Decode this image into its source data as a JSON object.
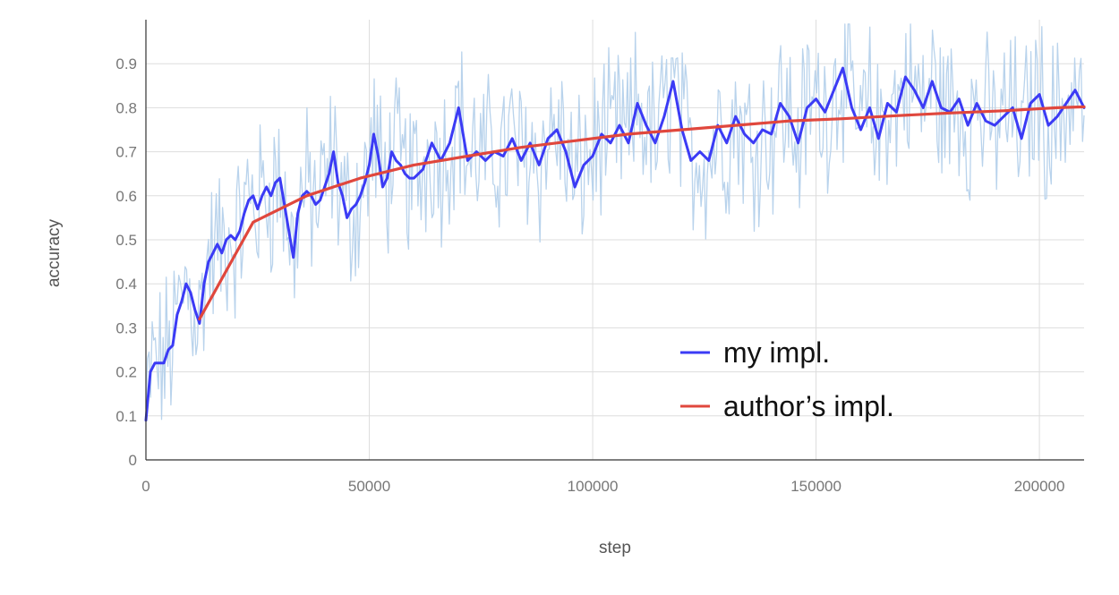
{
  "chart_data": {
    "type": "line",
    "xlabel": "step",
    "ylabel": "accuracy",
    "xlim": [
      0,
      210000
    ],
    "ylim": [
      0,
      1
    ],
    "x_ticks": [
      0,
      50000,
      100000,
      150000,
      200000
    ],
    "x_tick_labels": [
      "0",
      "50000",
      "100000",
      "150000",
      "200000"
    ],
    "y_ticks": [
      0,
      0.1,
      0.2,
      0.3,
      0.4,
      0.5,
      0.6,
      0.7,
      0.8,
      0.9
    ],
    "y_tick_labels": [
      "0",
      "0.1",
      "0.2",
      "0.3",
      "0.4",
      "0.5",
      "0.6",
      "0.7",
      "0.8",
      "0.9"
    ],
    "grid": true,
    "legend_position": "bottom-right",
    "series": [
      {
        "name": "my impl.",
        "color": "#3b3bf5",
        "raw_color": "#b9d3ec",
        "x": [
          0,
          1000,
          2000,
          3000,
          4000,
          5000,
          6000,
          7000,
          8000,
          9000,
          10000,
          11000,
          12000,
          13000,
          14000,
          15000,
          16000,
          17000,
          18000,
          19000,
          20000,
          21000,
          22000,
          23000,
          24000,
          25000,
          26000,
          27000,
          28000,
          29000,
          30000,
          31000,
          32000,
          33000,
          34000,
          35000,
          36000,
          37000,
          38000,
          39000,
          40000,
          41000,
          42000,
          43000,
          44000,
          45000,
          46000,
          47000,
          48000,
          49000,
          50000,
          51000,
          52000,
          53000,
          54000,
          55000,
          56000,
          57000,
          58000,
          59000,
          60000,
          62000,
          64000,
          66000,
          68000,
          70000,
          72000,
          74000,
          76000,
          78000,
          80000,
          82000,
          84000,
          86000,
          88000,
          90000,
          92000,
          94000,
          96000,
          98000,
          100000,
          102000,
          104000,
          106000,
          108000,
          110000,
          112000,
          114000,
          116000,
          118000,
          120000,
          122000,
          124000,
          126000,
          128000,
          130000,
          132000,
          134000,
          136000,
          138000,
          140000,
          142000,
          144000,
          146000,
          148000,
          150000,
          152000,
          154000,
          156000,
          158000,
          160000,
          162000,
          164000,
          166000,
          168000,
          170000,
          172000,
          174000,
          176000,
          178000,
          180000,
          182000,
          184000,
          186000,
          188000,
          190000,
          192000,
          194000,
          196000,
          198000,
          200000,
          202000,
          204000,
          206000,
          208000,
          210000
        ],
        "y": [
          0.09,
          0.2,
          0.22,
          0.22,
          0.22,
          0.25,
          0.26,
          0.33,
          0.36,
          0.4,
          0.38,
          0.34,
          0.31,
          0.4,
          0.45,
          0.47,
          0.49,
          0.47,
          0.5,
          0.51,
          0.5,
          0.52,
          0.56,
          0.59,
          0.6,
          0.57,
          0.6,
          0.62,
          0.6,
          0.63,
          0.64,
          0.58,
          0.52,
          0.46,
          0.56,
          0.6,
          0.61,
          0.6,
          0.58,
          0.59,
          0.62,
          0.65,
          0.7,
          0.63,
          0.6,
          0.55,
          0.57,
          0.58,
          0.6,
          0.63,
          0.67,
          0.74,
          0.69,
          0.62,
          0.64,
          0.7,
          0.68,
          0.67,
          0.65,
          0.64,
          0.64,
          0.66,
          0.72,
          0.68,
          0.72,
          0.8,
          0.68,
          0.7,
          0.68,
          0.7,
          0.69,
          0.73,
          0.68,
          0.72,
          0.67,
          0.73,
          0.75,
          0.7,
          0.62,
          0.67,
          0.69,
          0.74,
          0.72,
          0.76,
          0.72,
          0.81,
          0.76,
          0.72,
          0.78,
          0.86,
          0.75,
          0.68,
          0.7,
          0.68,
          0.76,
          0.72,
          0.78,
          0.74,
          0.72,
          0.75,
          0.74,
          0.81,
          0.78,
          0.72,
          0.8,
          0.82,
          0.79,
          0.84,
          0.89,
          0.8,
          0.75,
          0.8,
          0.73,
          0.81,
          0.79,
          0.87,
          0.84,
          0.8,
          0.86,
          0.8,
          0.79,
          0.82,
          0.76,
          0.81,
          0.77,
          0.76,
          0.78,
          0.8,
          0.73,
          0.81,
          0.83,
          0.76,
          0.78,
          0.81,
          0.84,
          0.8
        ]
      },
      {
        "name": "author’s impl.",
        "color": "#e0473d",
        "x": [
          12000,
          24000,
          36000,
          48000,
          60000,
          72000,
          84000,
          96000,
          108000,
          120000,
          132000,
          144000,
          156000,
          168000,
          180000,
          192000,
          204000,
          210000
        ],
        "y": [
          0.32,
          0.54,
          0.6,
          0.64,
          0.67,
          0.69,
          0.71,
          0.725,
          0.74,
          0.75,
          0.76,
          0.77,
          0.775,
          0.782,
          0.788,
          0.793,
          0.8,
          0.802
        ]
      }
    ]
  }
}
